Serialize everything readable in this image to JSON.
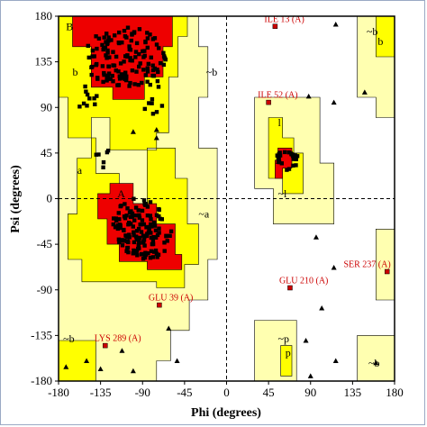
{
  "chart_data": {
    "type": "scatter",
    "xlabel": "Phi (degrees)",
    "ylabel": "Psi (degrees)",
    "xlim": [
      -180,
      180
    ],
    "ylim": [
      -180,
      180
    ],
    "x_ticks": [
      -180,
      -135,
      -90,
      -45,
      0,
      45,
      90,
      135,
      180
    ],
    "y_ticks": [
      180,
      135,
      90,
      45,
      0,
      -45,
      -90,
      -135,
      -180
    ],
    "x_tick_labels": [
      "-180",
      "-135",
      "-90",
      "-45",
      "0",
      "45",
      "90",
      "135",
      "180"
    ],
    "y_tick_labels": [
      "180",
      "135",
      "90",
      "45",
      "0",
      "-45",
      "-90",
      "-135",
      "-180"
    ],
    "colors": {
      "core": "#ee0000",
      "allowed": "#ffff00",
      "generous": "#ffffb0",
      "point": "#000000",
      "outlier": "#cc0000"
    },
    "region_labels": [
      {
        "text": "B",
        "phi": -172,
        "psi": 170
      },
      {
        "text": "b",
        "phi": -165,
        "psi": 125
      },
      {
        "text": "a",
        "phi": -160,
        "psi": 28
      },
      {
        "text": "A",
        "phi": -117,
        "psi": 5
      },
      {
        "text": "~b",
        "phi": -22,
        "psi": 125
      },
      {
        "text": "~a",
        "phi": -30,
        "psi": -15
      },
      {
        "text": "l",
        "phi": 55,
        "psi": 75
      },
      {
        "text": "L",
        "phi": 52,
        "psi": 38
      },
      {
        "text": "~l",
        "phi": 55,
        "psi": 5
      },
      {
        "text": "~b",
        "phi": 150,
        "psi": 165
      },
      {
        "text": "b",
        "phi": 162,
        "psi": 155
      },
      {
        "text": "~b",
        "phi": -175,
        "psi": -138
      },
      {
        "text": "~p",
        "phi": 55,
        "psi": -138
      },
      {
        "text": "p",
        "phi": 63,
        "psi": -152
      },
      {
        "text": "~b",
        "phi": 152,
        "psi": -162
      }
    ],
    "labeled_residues": [
      {
        "label": "ILE 13 (A)",
        "phi": 52,
        "psi": 170
      },
      {
        "label": "ILE 52 (A)",
        "phi": 45,
        "psi": 95
      },
      {
        "label": "GLU 210 (A)",
        "phi": 68,
        "psi": -88
      },
      {
        "label": "SER 237 (A)",
        "phi": 172,
        "psi": -72
      },
      {
        "label": "GLU 39 (A)",
        "phi": -72,
        "psi": -105
      },
      {
        "label": "LYS 289 (A)",
        "phi": -130,
        "psi": -145
      }
    ],
    "glycine_points": [
      [
        117,
        172
      ],
      [
        148,
        105
      ],
      [
        88,
        101
      ],
      [
        115,
        95
      ],
      [
        70,
        45
      ],
      [
        96,
        -38
      ],
      [
        115,
        -68
      ],
      [
        102,
        -108
      ],
      [
        117,
        -160
      ],
      [
        160,
        -162
      ],
      [
        -112,
        -150
      ],
      [
        -150,
        -160
      ],
      [
        -172,
        -166
      ],
      [
        -100,
        -170
      ],
      [
        -53,
        -160
      ],
      [
        -62,
        -128
      ],
      [
        -100,
        66
      ],
      [
        -75,
        68
      ],
      [
        -75,
        60
      ],
      [
        85,
        -140
      ],
      [
        90,
        -175
      ],
      [
        -135,
        -168
      ]
    ]
  }
}
